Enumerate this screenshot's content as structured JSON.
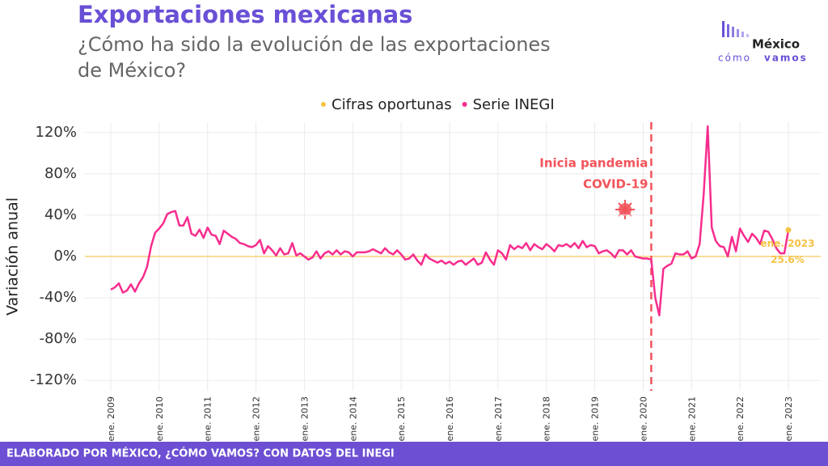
{
  "chart_data": {
    "type": "line",
    "title": "Exportaciones mexicanas",
    "subtitle_lines": [
      "¿Cómo ha sido la evolución de las exportaciones",
      "de México?"
    ],
    "ylabel": "Variación anual",
    "footer": "ELABORADO POR MÉXICO, ¿CÓMO VAMOS? CON DATOS DEL INEGI",
    "logo": [
      "México",
      "cómo",
      "vamos"
    ],
    "categories": [
      "ene. 2009",
      null,
      null,
      null,
      null,
      null,
      null,
      null,
      null,
      null,
      null,
      null,
      "ene. 2010",
      null,
      null,
      null,
      null,
      null,
      null,
      null,
      null,
      null,
      null,
      null,
      "ene. 2011",
      null,
      null,
      null,
      null,
      null,
      null,
      null,
      null,
      null,
      null,
      null,
      "ene. 2012",
      null,
      null,
      null,
      null,
      null,
      null,
      null,
      null,
      null,
      null,
      null,
      "ene. 2013",
      null,
      null,
      null,
      null,
      null,
      null,
      null,
      null,
      null,
      null,
      null,
      "ene. 2014",
      null,
      null,
      null,
      null,
      null,
      null,
      null,
      null,
      null,
      null,
      null,
      "ene. 2015",
      null,
      null,
      null,
      null,
      null,
      null,
      null,
      null,
      null,
      null,
      null,
      "ene. 2016",
      null,
      null,
      null,
      null,
      null,
      null,
      null,
      null,
      null,
      null,
      null,
      "ene. 2017",
      null,
      null,
      null,
      null,
      null,
      null,
      null,
      null,
      null,
      null,
      null,
      "ene. 2018",
      null,
      null,
      null,
      null,
      null,
      null,
      null,
      null,
      null,
      null,
      null,
      "ene. 2019",
      null,
      null,
      null,
      null,
      null,
      null,
      null,
      null,
      null,
      null,
      null,
      "ene. 2020",
      null,
      null,
      null,
      null,
      null,
      null,
      null,
      null,
      null,
      null,
      null,
      "ene. 2021",
      null,
      null,
      null,
      null,
      null,
      null,
      null,
      null,
      null,
      null,
      null,
      "ene. 2022",
      null,
      null,
      null,
      null,
      null,
      null,
      null,
      null,
      null,
      null,
      null,
      "ene. 2023"
    ],
    "series": [
      {
        "name": "Serie INEGI",
        "color": "#f72d8e",
        "values": [
          -32,
          -30,
          -26,
          -35,
          -33,
          -27,
          -34,
          -26,
          -20,
          -10,
          10,
          23,
          27,
          32,
          41,
          43,
          44,
          30,
          30,
          38,
          22,
          20,
          26,
          18,
          28,
          21,
          20,
          12,
          25,
          22,
          19,
          17,
          13,
          12,
          10,
          9,
          11,
          16,
          3,
          10,
          6,
          1,
          8,
          2,
          3,
          13,
          1,
          3,
          0,
          -3,
          -1,
          5,
          -2,
          3,
          5,
          2,
          6,
          2,
          5,
          4,
          0,
          4,
          4,
          4,
          5,
          7,
          5,
          3,
          8,
          4,
          2,
          6,
          2,
          -3,
          -2,
          2,
          -4,
          -8,
          2,
          -2,
          -4,
          -6,
          -4,
          -7,
          -5,
          -8,
          -5,
          -4,
          -8,
          -5,
          -2,
          -8,
          -6,
          4,
          -3,
          -8,
          6,
          3,
          -3,
          11,
          7,
          10,
          8,
          13,
          6,
          12,
          9,
          7,
          12,
          9,
          5,
          11,
          10,
          12,
          9,
          13,
          8,
          15,
          9,
          11,
          10,
          3,
          5,
          6,
          3,
          -1,
          6,
          6,
          2,
          6,
          0,
          -1,
          -2,
          -2,
          -3,
          -40,
          -57,
          -12,
          -9,
          -7,
          3,
          2,
          2,
          5,
          -2,
          0,
          12,
          60,
          126,
          28,
          15,
          10,
          9,
          0,
          19,
          5,
          27,
          20,
          14,
          22,
          18,
          12,
          25,
          24,
          17,
          8,
          3,
          3,
          25.6
        ]
      },
      {
        "name": "Cifras oportunas",
        "color": "#f6c244",
        "x": [
          "ene. 2023"
        ],
        "values": [
          25.6
        ],
        "value_labels": [
          "25.6%"
        ]
      }
    ],
    "legend_order": [
      1,
      0
    ],
    "annotation": {
      "x": "ene. 2020",
      "offset_months": 2,
      "lines": [
        "Inicia pandemia",
        "COVID-19"
      ],
      "color": "#f2545b"
    },
    "ylim": [
      -130,
      130
    ],
    "yticks": [
      {
        "value": -120,
        "label": "-120%"
      },
      {
        "value": -80,
        "label": "-80%"
      },
      {
        "value": -40,
        "label": "-40%"
      },
      {
        "value": 0,
        "label": "0%"
      },
      {
        "value": 40,
        "label": "40%"
      },
      {
        "value": 80,
        "label": "80%"
      },
      {
        "value": 120,
        "label": "120%"
      }
    ],
    "grid": true
  }
}
